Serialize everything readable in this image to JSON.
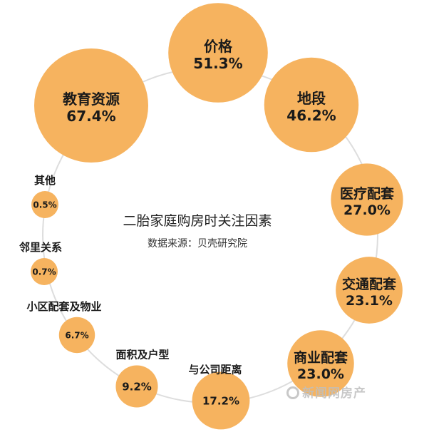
{
  "chart_data": {
    "type": "bubble",
    "title": "二胎家庭购房时关注因素",
    "subtitle": "数据来源：贝壳研究院",
    "unit": "%",
    "bubble_color": "#f6b35f",
    "ring_color": "#dddddd",
    "categories": [
      "价格",
      "地段",
      "医疗配套",
      "交通配套",
      "商业配套",
      "与公司距离",
      "面积及户型",
      "小区配套及物业",
      "邻里关系",
      "其他",
      "教育资源"
    ],
    "values": [
      51.3,
      46.2,
      27.0,
      23.1,
      23.0,
      17.2,
      9.2,
      6.7,
      0.7,
      0.5,
      67.4
    ],
    "value_labels": [
      "51.3%",
      "46.2%",
      "27.0%",
      "23.1%",
      "23.0%",
      "17.2%",
      "9.2%",
      "6.7%",
      "0.7%",
      "0.5%",
      "67.4%"
    ]
  },
  "watermark": {
    "text": "新闻网房产"
  }
}
